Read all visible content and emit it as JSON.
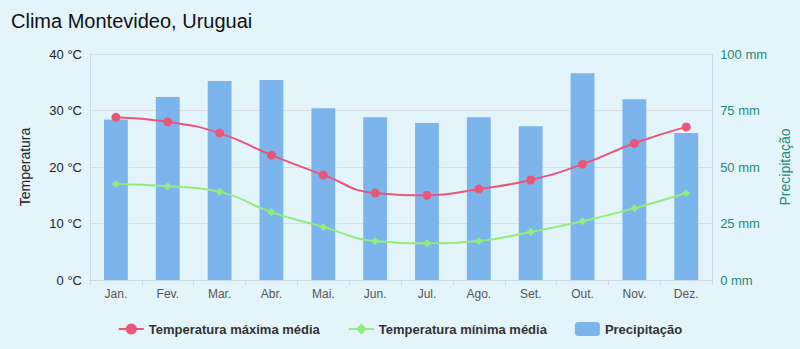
{
  "chart_data": {
    "type": "bar",
    "title": "Clima Montevideo, Uruguai",
    "categories": [
      "Jan.",
      "Fev.",
      "Mar.",
      "Abr.",
      "Mai.",
      "Jun.",
      "Jul.",
      "Ago.",
      "Set.",
      "Out.",
      "Nov.",
      "Dez."
    ],
    "y_label": "Temperatura",
    "y2_label": "Precipitação",
    "ylim": [
      0,
      40
    ],
    "yticks": [
      {
        "value": 0,
        "label": "0 °C"
      },
      {
        "value": 10,
        "label": "10 °C"
      },
      {
        "value": 20,
        "label": "20 °C"
      },
      {
        "value": 30,
        "label": "30 °C"
      },
      {
        "value": 40,
        "label": "40 °C"
      }
    ],
    "y2lim": [
      0,
      100
    ],
    "y2ticks": [
      {
        "value": 0,
        "label": "0 mm"
      },
      {
        "value": 25,
        "label": "25 mm"
      },
      {
        "value": 50,
        "label": "50 mm"
      },
      {
        "value": 75,
        "label": "75 mm"
      },
      {
        "value": 100,
        "label": "100 mm"
      }
    ],
    "grid": true,
    "legend": "bottom",
    "series": [
      {
        "name": "Temperatura máxima média",
        "type": "line",
        "color": "#e8577a",
        "marker": "circle",
        "values": [
          28.8,
          28.0,
          26.0,
          22.1,
          18.6,
          15.4,
          15.0,
          16.1,
          17.7,
          20.5,
          24.2,
          27.1
        ]
      },
      {
        "name": "Temperatura mínima média",
        "type": "line",
        "color": "#90ed7d",
        "marker": "diamond",
        "values": [
          17.0,
          16.6,
          15.6,
          12.0,
          9.4,
          6.9,
          6.5,
          6.9,
          8.5,
          10.4,
          12.7,
          15.4
        ]
      },
      {
        "name": "Precipitação",
        "type": "bar",
        "axis": "y2",
        "color": "#7cb5ec",
        "values": [
          71,
          81,
          88,
          88.5,
          76,
          72,
          69.5,
          72,
          68,
          91.5,
          80,
          65
        ]
      }
    ]
  }
}
